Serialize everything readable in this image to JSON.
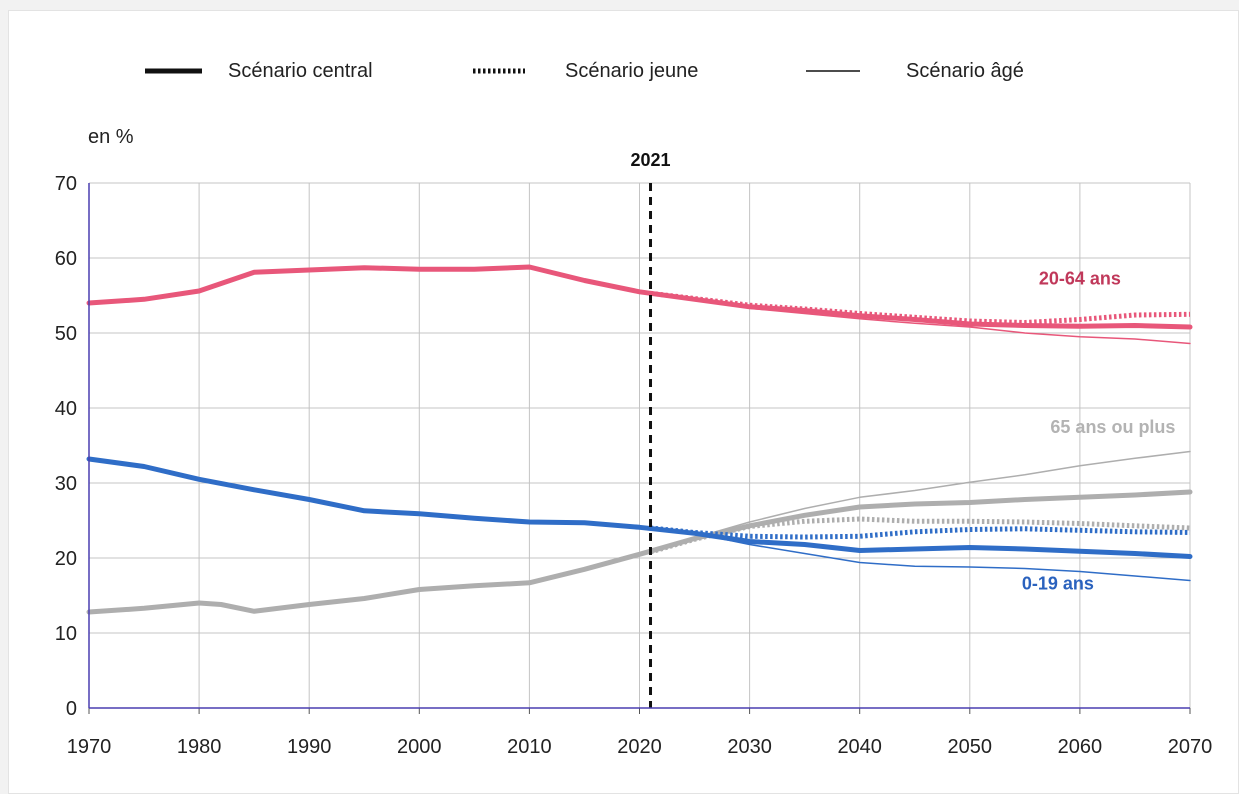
{
  "chart_data": {
    "type": "line",
    "title": "",
    "unit_label": "en %",
    "xlabel": "",
    "ylabel": "",
    "xlim": [
      1970,
      2070
    ],
    "ylim": [
      0,
      70
    ],
    "x_ticks": [
      1970,
      1980,
      1990,
      2000,
      2010,
      2020,
      2030,
      2040,
      2050,
      2060,
      2070
    ],
    "y_ticks": [
      0,
      10,
      20,
      30,
      40,
      50,
      60,
      70
    ],
    "grid": true,
    "legend_position": "top",
    "legend": [
      {
        "key": "central",
        "label": "Scénario central",
        "style": "thick"
      },
      {
        "key": "jeune",
        "label": "Scénario jeune",
        "style": "dotted"
      },
      {
        "key": "age",
        "label": "Scénario âgé",
        "style": "thin"
      }
    ],
    "reference_line": {
      "x": 2021,
      "label": "2021"
    },
    "groups": [
      {
        "label": "20-64 ans",
        "color": "#e8577a",
        "label_color": "#c0385a",
        "label_anchor": [
          2060,
          56.5
        ],
        "scenarios": {
          "central": {
            "x": [
              1970,
              1975,
              1980,
              1985,
              1990,
              1995,
              2000,
              2005,
              2010,
              2015,
              2020,
              2025,
              2030,
              2035,
              2040,
              2045,
              2050,
              2055,
              2060,
              2065,
              2070
            ],
            "y": [
              54.0,
              54.5,
              55.6,
              58.1,
              58.4,
              58.7,
              58.5,
              58.5,
              58.8,
              57.0,
              55.5,
              54.5,
              53.5,
              53.0,
              52.3,
              51.8,
              51.2,
              51.0,
              50.9,
              51.0,
              50.8
            ]
          },
          "jeune": {
            "x": [
              2021,
              2025,
              2030,
              2035,
              2040,
              2045,
              2050,
              2055,
              2060,
              2065,
              2070
            ],
            "y": [
              55.3,
              54.6,
              53.7,
              53.2,
              52.6,
              52.1,
              51.6,
              51.4,
              51.8,
              52.4,
              52.5
            ]
          },
          "age": {
            "x": [
              2021,
              2025,
              2030,
              2035,
              2040,
              2045,
              2050,
              2055,
              2060,
              2065,
              2070
            ],
            "y": [
              55.3,
              54.4,
              53.3,
              52.6,
              51.9,
              51.3,
              50.8,
              50.0,
              49.5,
              49.2,
              48.6
            ]
          }
        }
      },
      {
        "label": "65 ans ou plus",
        "color": "#aeaeae",
        "label_color": "#b3b3b3",
        "label_anchor": [
          2063,
          36.7
        ],
        "scenarios": {
          "central": {
            "x": [
              1970,
              1975,
              1980,
              1982,
              1985,
              1990,
              1995,
              2000,
              2005,
              2010,
              2015,
              2020,
              2025,
              2030,
              2035,
              2040,
              2045,
              2050,
              2055,
              2060,
              2065,
              2070
            ],
            "y": [
              12.8,
              13.3,
              14.0,
              13.8,
              12.9,
              13.8,
              14.6,
              15.8,
              16.3,
              16.7,
              18.5,
              20.5,
              22.6,
              24.3,
              25.7,
              26.8,
              27.2,
              27.4,
              27.8,
              28.1,
              28.4,
              28.8
            ]
          },
          "jeune": {
            "x": [
              2021,
              2025,
              2030,
              2035,
              2040,
              2045,
              2050,
              2055,
              2060,
              2065,
              2070
            ],
            "y": [
              20.8,
              22.5,
              24.2,
              24.9,
              25.2,
              24.9,
              24.9,
              24.8,
              24.6,
              24.3,
              24.0
            ]
          },
          "age": {
            "x": [
              2021,
              2025,
              2030,
              2035,
              2040,
              2045,
              2050,
              2055,
              2060,
              2065,
              2070
            ],
            "y": [
              20.8,
              22.7,
              24.8,
              26.6,
              28.1,
              29.0,
              30.1,
              31.1,
              32.3,
              33.3,
              34.2
            ]
          }
        }
      },
      {
        "label": "0-19 ans",
        "color": "#2f6dc7",
        "label_color": "#2a62be",
        "label_anchor": [
          2058,
          15.8
        ],
        "scenarios": {
          "central": {
            "x": [
              1970,
              1975,
              1980,
              1985,
              1990,
              1995,
              2000,
              2005,
              2010,
              2015,
              2020,
              2025,
              2030,
              2035,
              2040,
              2045,
              2050,
              2055,
              2060,
              2065,
              2070
            ],
            "y": [
              33.2,
              32.2,
              30.5,
              29.1,
              27.8,
              26.3,
              25.9,
              25.3,
              24.8,
              24.7,
              24.1,
              23.3,
              22.2,
              21.8,
              21.0,
              21.2,
              21.4,
              21.2,
              20.9,
              20.6,
              20.2
            ]
          },
          "jeune": {
            "x": [
              2021,
              2025,
              2030,
              2035,
              2040,
              2045,
              2050,
              2055,
              2060,
              2065,
              2070
            ],
            "y": [
              24.0,
              23.4,
              22.9,
              22.8,
              22.9,
              23.5,
              23.8,
              23.9,
              23.7,
              23.5,
              23.4
            ]
          },
          "age": {
            "x": [
              2021,
              2025,
              2030,
              2035,
              2040,
              2045,
              2050,
              2055,
              2060,
              2065,
              2070
            ],
            "y": [
              24.0,
              23.3,
              21.8,
              20.6,
              19.4,
              18.9,
              18.8,
              18.6,
              18.2,
              17.6,
              17.0
            ]
          }
        }
      }
    ]
  }
}
